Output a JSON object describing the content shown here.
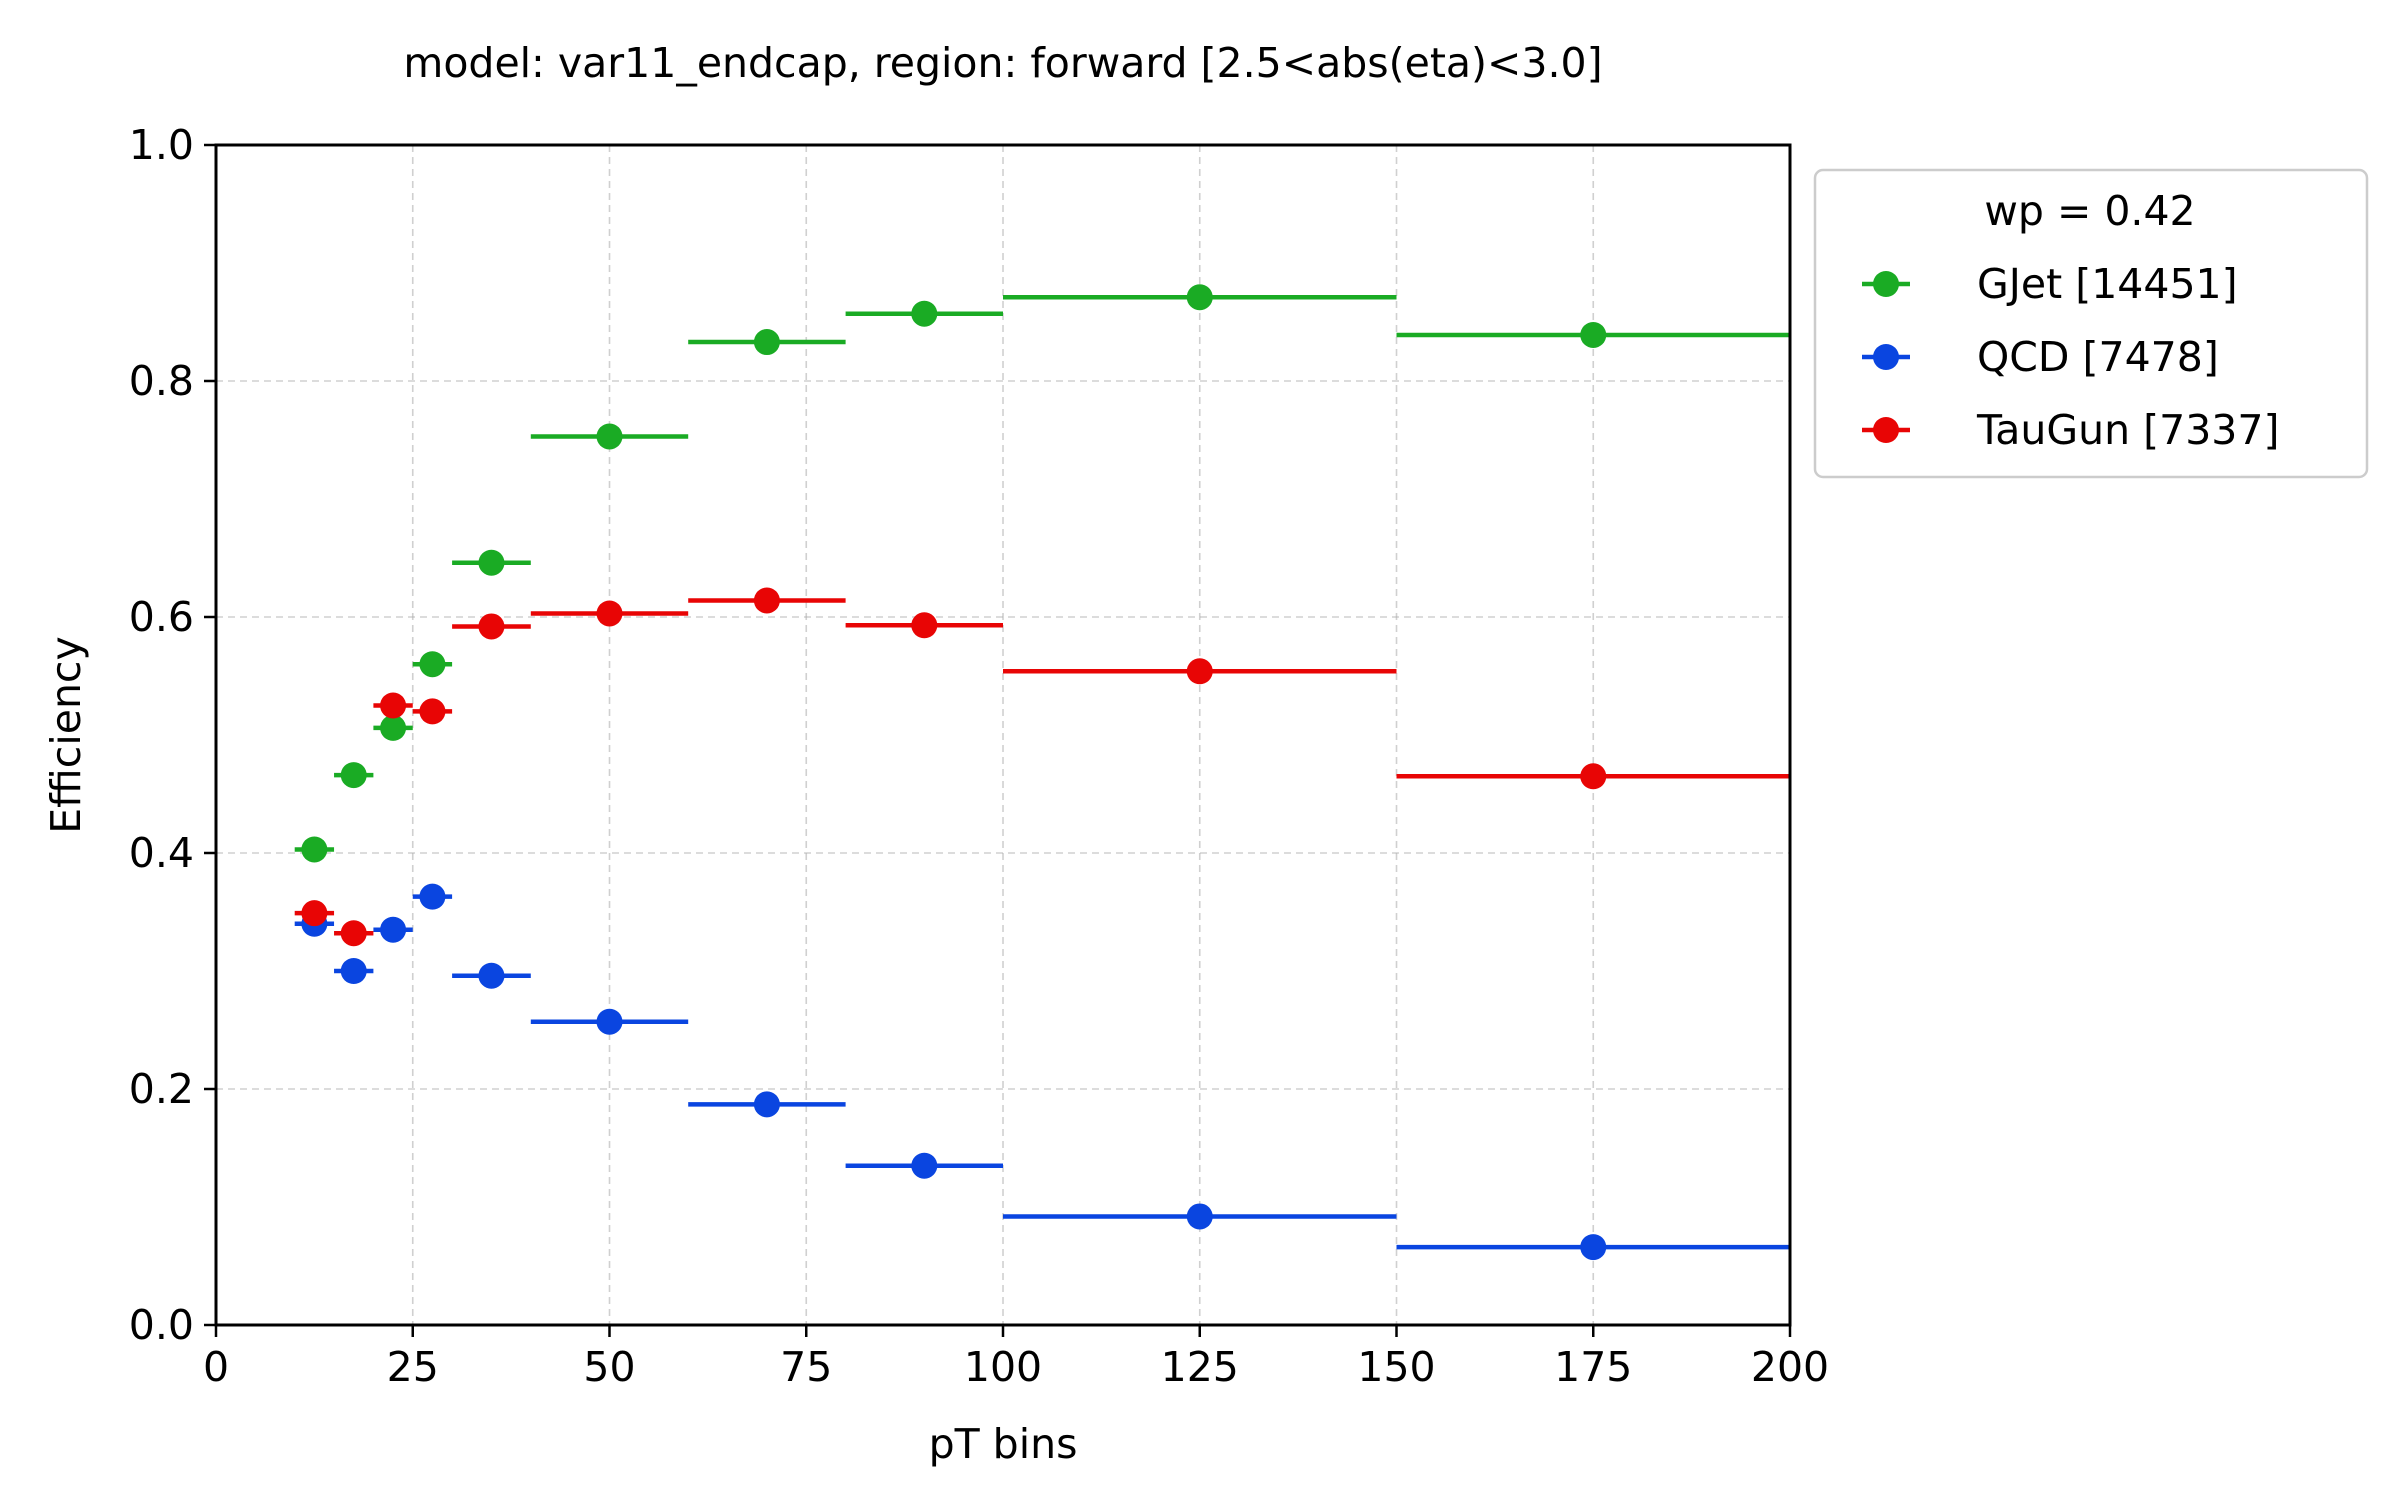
{
  "chart_data": {
    "type": "scatter",
    "title": "model: var11_endcap, region: forward [2.5<abs(eta)<3.0]",
    "xlabel": "pT bins",
    "ylabel": "Efficiency",
    "xlim": [
      0,
      200
    ],
    "ylim": [
      0.0,
      1.0
    ],
    "x_ticks": [
      "0",
      "25",
      "50",
      "75",
      "100",
      "125",
      "150",
      "175",
      "200"
    ],
    "y_ticks": [
      "0.0",
      "0.2",
      "0.4",
      "0.6",
      "0.8",
      "1.0"
    ],
    "grid": true,
    "legend": {
      "placement": "outside-top-right",
      "title": "wp = 0.42"
    },
    "bins": [
      [
        10,
        15
      ],
      [
        15,
        20
      ],
      [
        20,
        25
      ],
      [
        25,
        30
      ],
      [
        30,
        40
      ],
      [
        40,
        60
      ],
      [
        60,
        80
      ],
      [
        80,
        100
      ],
      [
        100,
        150
      ],
      [
        150,
        200
      ]
    ],
    "x": [
      12.5,
      17.5,
      22.5,
      27.5,
      35,
      50,
      70,
      90,
      125,
      175
    ],
    "series": [
      {
        "name": "GJet [14451]",
        "color": "#1aab24",
        "values": [
          0.403,
          0.466,
          0.506,
          0.56,
          0.646,
          0.753,
          0.833,
          0.857,
          0.871,
          0.839
        ]
      },
      {
        "name": "QCD [7478]",
        "color": "#0a45e0",
        "values": [
          0.34,
          0.3,
          0.335,
          0.363,
          0.296,
          0.257,
          0.187,
          0.135,
          0.092,
          0.066
        ]
      },
      {
        "name": "TauGun [7337]",
        "color": "#e80505",
        "values": [
          0.349,
          0.332,
          0.525,
          0.52,
          0.592,
          0.603,
          0.614,
          0.593,
          0.554,
          0.465
        ]
      }
    ]
  }
}
